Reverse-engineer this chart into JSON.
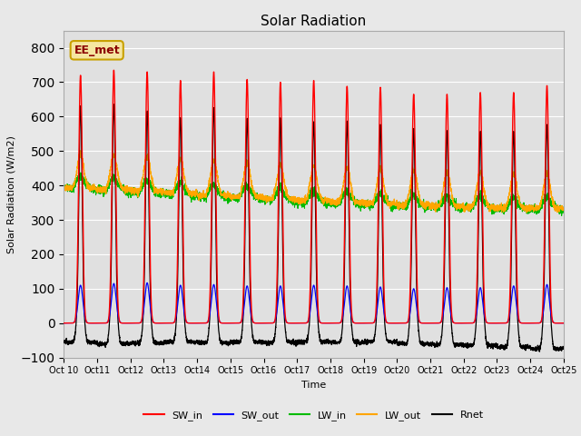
{
  "title": "Solar Radiation",
  "ylabel": "Solar Radiation (W/m2)",
  "xlabel": "Time",
  "ylim": [
    -100,
    850
  ],
  "background_color": "#e8e8e8",
  "plot_bg_color": "#e0e0e0",
  "grid_color": "#ffffff",
  "annotation_text": "EE_met",
  "annotation_bg": "#f5e6a0",
  "annotation_border": "#c8a000",
  "tick_labels": [
    "Oct 10",
    "Oct 11",
    "Oct 12",
    "Oct 13",
    "Oct 14",
    "Oct 15",
    "Oct 16",
    "Oct 17",
    "Oct 18",
    "Oct 19",
    "Oct 20",
    "Oct 21",
    "Oct 22",
    "Oct 23",
    "Oct 24",
    "Oct 25"
  ],
  "legend_entries": [
    "SW_in",
    "SW_out",
    "LW_in",
    "LW_out",
    "Rnet"
  ],
  "line_colors": {
    "SW_in": "#ff0000",
    "SW_out": "#0000ff",
    "LW_in": "#00bb00",
    "LW_out": "#ffa500",
    "Rnet": "#000000"
  },
  "n_days": 15,
  "points_per_day": 288,
  "sw_peaks": [
    720,
    735,
    730,
    705,
    730,
    708,
    700,
    705,
    688,
    685,
    665,
    665,
    670,
    670,
    690
  ],
  "sw_out_peaks": [
    110,
    115,
    117,
    110,
    112,
    108,
    108,
    110,
    108,
    105,
    100,
    103,
    103,
    108,
    112
  ],
  "rnet_peaks": [
    645,
    650,
    630,
    610,
    640,
    608,
    610,
    598,
    600,
    590,
    578,
    572,
    570,
    570,
    590
  ],
  "lw_in_base": [
    390,
    385,
    378,
    372,
    365,
    362,
    356,
    350,
    346,
    342,
    338,
    335,
    333,
    330,
    330
  ],
  "lw_out_base": [
    390,
    388,
    382,
    376,
    370,
    366,
    360,
    355,
    350,
    346,
    342,
    338,
    335,
    333,
    332
  ],
  "night_rnet": [
    -55,
    -60,
    -58,
    -55,
    -57,
    -55,
    -56,
    -54,
    -56,
    -54,
    -60,
    -62,
    -65,
    -70,
    -75
  ]
}
